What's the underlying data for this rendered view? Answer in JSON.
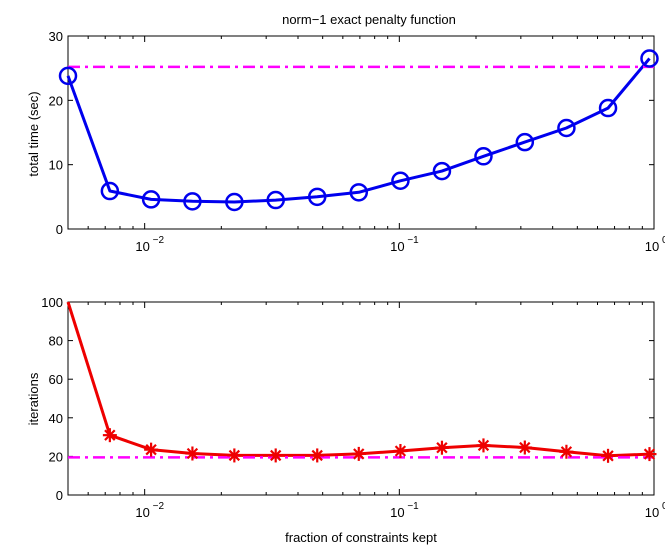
{
  "chart_data": [
    {
      "type": "line",
      "title": "norm−1 exact penalty function",
      "xlabel": "",
      "ylabel": "total time (sec)",
      "xscale": "log",
      "xlim": [
        0.005,
        1
      ],
      "ylim": [
        0,
        30
      ],
      "x_ticks": [
        0.01,
        0.1,
        1
      ],
      "x_tick_bases": [
        "10",
        "10",
        "10"
      ],
      "x_tick_exps": [
        "−2",
        "−1",
        "0"
      ],
      "y_ticks": [
        "0",
        "10",
        "20",
        "30"
      ],
      "grid": false,
      "series": [
        {
          "color": "#0000ee",
          "marker": "circle",
          "x": [
            0.005,
            0.0073,
            0.0106,
            0.0154,
            0.0225,
            0.0327,
            0.0476,
            0.0693,
            0.101,
            0.147,
            0.214,
            0.311,
            0.453,
            0.66,
            0.96
          ],
          "y": [
            23.8,
            5.9,
            4.6,
            4.3,
            4.2,
            4.5,
            5.0,
            5.7,
            7.5,
            9.0,
            11.3,
            13.5,
            15.7,
            18.8,
            26.5
          ]
        },
        {
          "color": "#ff00ff",
          "style": "dash-dot",
          "x": [
            0.005,
            1
          ],
          "y": [
            25.2,
            25.2
          ]
        }
      ]
    },
    {
      "type": "line",
      "title": "",
      "xlabel": "fraction of constraints kept",
      "ylabel": "iterations",
      "xscale": "log",
      "xlim": [
        0.005,
        1
      ],
      "ylim": [
        0,
        100
      ],
      "x_ticks": [
        0.01,
        0.1,
        1
      ],
      "x_tick_bases": [
        "10",
        "10",
        "10"
      ],
      "x_tick_exps": [
        "−2",
        "−1",
        "0"
      ],
      "y_ticks": [
        "0",
        "20",
        "40",
        "60",
        "80",
        "100"
      ],
      "grid": false,
      "series": [
        {
          "color": "#ee0000",
          "marker": "asterisk",
          "x": [
            0.005,
            0.0073,
            0.0106,
            0.0154,
            0.0225,
            0.0327,
            0.0476,
            0.0693,
            0.101,
            0.147,
            0.214,
            0.311,
            0.453,
            0.66,
            0.96
          ],
          "y": [
            100,
            31,
            23.5,
            21.5,
            20.5,
            20.5,
            20.5,
            21.3,
            22.8,
            24.5,
            25.7,
            24.6,
            22.4,
            20.3,
            21.2
          ]
        },
        {
          "color": "#ff00ff",
          "style": "dash-dot",
          "x": [
            0.005,
            1
          ],
          "y": [
            19.5,
            19.5
          ]
        }
      ]
    }
  ]
}
